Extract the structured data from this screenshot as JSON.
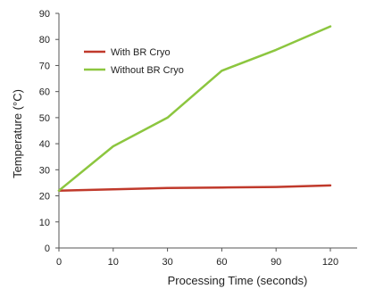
{
  "chart_data": {
    "type": "line",
    "categories": [
      "0",
      "10",
      "30",
      "60",
      "90",
      "120"
    ],
    "series": [
      {
        "name": "With BR Cryo",
        "color": "#c0392b",
        "values": [
          22,
          22.5,
          23,
          23.2,
          23.4,
          24
        ]
      },
      {
        "name": "Without BR Cryo",
        "color": "#8cc63f",
        "values": [
          22,
          39,
          50,
          68,
          76,
          85
        ]
      }
    ],
    "title": "",
    "xlabel": "Processing Time (seconds)",
    "ylabel": "Temperature (°C)",
    "ylim": [
      0,
      90
    ],
    "yticks": [
      0,
      10,
      20,
      30,
      40,
      50,
      60,
      70,
      80,
      90
    ],
    "grid": false,
    "legend_position": "top-left"
  }
}
